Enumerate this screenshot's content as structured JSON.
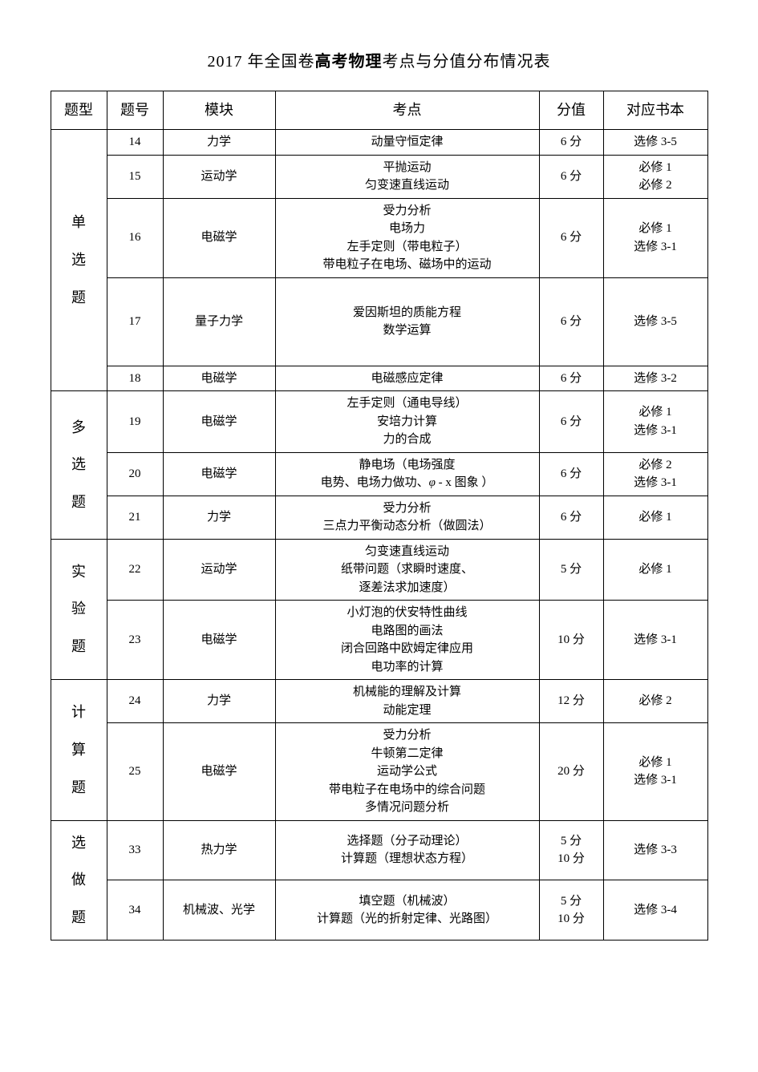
{
  "title_prefix": "2017 年全国卷",
  "title_bold": "高考物理",
  "title_suffix": "考点与分值分布情况表",
  "headers": {
    "type": "题型",
    "num": "题号",
    "module": "模块",
    "topic": "考点",
    "score": "分值",
    "book": "对应书本"
  },
  "groups": [
    {
      "type_label": "单选题",
      "rows": [
        {
          "num": "14",
          "module": "力学",
          "topic": [
            "动量守恒定律"
          ],
          "score": [
            "6 分"
          ],
          "book": [
            "选修 3-5"
          ],
          "tall": false
        },
        {
          "num": "15",
          "module": "运动学",
          "topic": [
            "平抛运动",
            "匀变速直线运动"
          ],
          "score": [
            "6 分"
          ],
          "book": [
            "必修 1",
            "必修 2"
          ],
          "tall": false
        },
        {
          "num": "16",
          "module": "电磁学",
          "topic": [
            "受力分析",
            "电场力",
            "左手定则（带电粒子）",
            "带电粒子在电场、磁场中的运动"
          ],
          "score": [
            "6 分"
          ],
          "book": [
            "必修 1",
            "选修 3-1"
          ],
          "tall": false
        },
        {
          "num": "17",
          "module": "量子力学",
          "topic": [
            "爱因斯坦的质能方程",
            "数学运算"
          ],
          "score": [
            "6 分"
          ],
          "book": [
            "选修 3-5"
          ],
          "tall": true
        },
        {
          "num": "18",
          "module": "电磁学",
          "topic": [
            "电磁感应定律"
          ],
          "score": [
            "6 分"
          ],
          "book": [
            "选修 3-2"
          ],
          "tall": false
        }
      ]
    },
    {
      "type_label": "多选题",
      "rows": [
        {
          "num": "19",
          "module": "电磁学",
          "topic": [
            "左手定则（通电导线）",
            "安培力计算",
            "力的合成"
          ],
          "score": [
            "6 分"
          ],
          "book": [
            "必修 1",
            "选修 3-1"
          ],
          "tall": false
        },
        {
          "num": "20",
          "module": "电磁学",
          "topic": [
            "静电场（电场强度",
            "电势、电场力做功、<span class=\"italic\">φ</span> - x 图象 ）"
          ],
          "score": [
            "6 分"
          ],
          "book": [
            "必修 2",
            "选修 3-1"
          ],
          "tall": false
        },
        {
          "num": "21",
          "module": "力学",
          "topic": [
            "受力分析",
            "三点力平衡动态分析（做圆法）"
          ],
          "score": [
            "6 分"
          ],
          "book": [
            "必修 1"
          ],
          "tall": false
        }
      ]
    },
    {
      "type_label": "实验题",
      "rows": [
        {
          "num": "22",
          "module": "运动学",
          "topic": [
            "匀变速直线运动",
            "纸带问题（求瞬时速度、",
            "逐差法求加速度）"
          ],
          "score": [
            "5 分"
          ],
          "book": [
            "必修 1"
          ],
          "tall": false
        },
        {
          "num": "23",
          "module": "电磁学",
          "topic": [
            "小灯泡的伏安特性曲线",
            "电路图的画法",
            "闭合回路中欧姆定律应用",
            "电功率的计算"
          ],
          "score": [
            "10 分"
          ],
          "book": [
            "选修 3-1"
          ],
          "tall": false
        }
      ]
    },
    {
      "type_label": "计算题",
      "rows": [
        {
          "num": "24",
          "module": "力学",
          "topic": [
            "机械能的理解及计算",
            "动能定理"
          ],
          "score": [
            "12 分"
          ],
          "book": [
            "必修 2"
          ],
          "tall": false
        },
        {
          "num": "25",
          "module": "电磁学",
          "topic": [
            "受力分析",
            "牛顿第二定律",
            "运动学公式",
            "带电粒子在电场中的综合问题",
            "多情况问题分析"
          ],
          "score": [
            "20 分"
          ],
          "book": [
            "必修 1",
            "选修 3-1"
          ],
          "tall": false
        }
      ]
    },
    {
      "type_label": "选做题",
      "rows": [
        {
          "num": "33",
          "module": "热力学",
          "topic": [
            "选择题（分子动理论）",
            "计算题（理想状态方程）"
          ],
          "score": [
            "5 分",
            "10 分"
          ],
          "book": [
            "选修 3-3"
          ],
          "tall": false
        },
        {
          "num": "34",
          "module": "机械波、光学",
          "topic": [
            "填空题（机械波）",
            "计算题（光的折射定律、光路图）"
          ],
          "score": [
            "5 分",
            "10 分"
          ],
          "book": [
            "选修 3-4"
          ],
          "tall": false
        }
      ]
    }
  ]
}
